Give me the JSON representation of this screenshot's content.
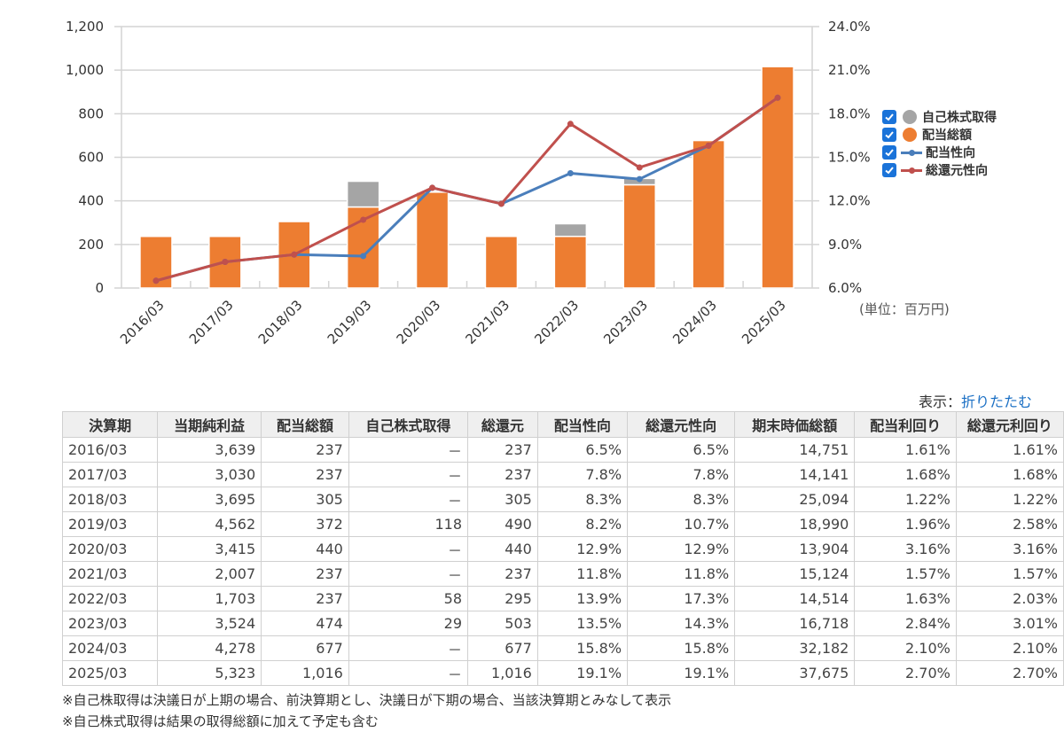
{
  "chart_data": {
    "type": "bar",
    "categories": [
      "2016/03",
      "2017/03",
      "2018/03",
      "2019/03",
      "2020/03",
      "2021/03",
      "2022/03",
      "2023/03",
      "2024/03",
      "2025/03"
    ],
    "series": [
      {
        "name": "配当総額",
        "kind": "stacked-bar",
        "axis": "left",
        "color": "#ed7d31",
        "values": [
          237,
          237,
          305,
          372,
          440,
          237,
          237,
          474,
          677,
          1016
        ]
      },
      {
        "name": "自己株式取得",
        "kind": "stacked-bar",
        "axis": "left",
        "color": "#a5a5a5",
        "values": [
          0,
          0,
          0,
          118,
          0,
          0,
          58,
          29,
          0,
          0
        ]
      },
      {
        "name": "配当性向",
        "kind": "line",
        "axis": "right",
        "color": "#4a7ebb",
        "values": [
          6.5,
          7.8,
          8.3,
          8.2,
          12.9,
          11.8,
          13.9,
          13.5,
          15.8,
          19.1
        ]
      },
      {
        "name": "総還元性向",
        "kind": "line",
        "axis": "right",
        "color": "#c0504d",
        "values": [
          6.5,
          7.8,
          8.3,
          10.7,
          12.9,
          11.8,
          17.3,
          14.3,
          15.8,
          19.1
        ]
      }
    ],
    "left_axis": {
      "ylim": [
        0,
        1200
      ],
      "ticks": [
        "0",
        "200",
        "400",
        "600",
        "800",
        "1,000",
        "1,200"
      ]
    },
    "right_axis": {
      "ylim": [
        6.0,
        24.0
      ],
      "ticks": [
        "6.0%",
        "9.0%",
        "12.0%",
        "15.0%",
        "18.0%",
        "21.0%",
        "24.0%"
      ]
    },
    "grid": true,
    "legend_position": "right",
    "unit_label": "(単位：百万円)"
  },
  "legend": [
    {
      "label": "自己株式取得",
      "checked": true,
      "swatch": "dot",
      "color": "#a5a5a5"
    },
    {
      "label": "配当総額",
      "checked": true,
      "swatch": "dot",
      "color": "#ed7d31"
    },
    {
      "label": "配当性向",
      "checked": true,
      "swatch": "line",
      "color": "#4a7ebb"
    },
    {
      "label": "総還元性向",
      "checked": true,
      "swatch": "line",
      "color": "#c0504d"
    }
  ],
  "display_toggle": {
    "label": "表示：",
    "link": "折りたたむ"
  },
  "table": {
    "headers": [
      "決算期",
      "当期純利益",
      "配当総額",
      "自己株式取得",
      "総還元",
      "配当性向",
      "総還元性向",
      "期末時価総額",
      "配当利回り",
      "総還元利回り"
    ],
    "rows": [
      [
        "2016/03",
        "3,639",
        "237",
        "－",
        "237",
        "6.5%",
        "6.5%",
        "14,751",
        "1.61%",
        "1.61%"
      ],
      [
        "2017/03",
        "3,030",
        "237",
        "－",
        "237",
        "7.8%",
        "7.8%",
        "14,141",
        "1.68%",
        "1.68%"
      ],
      [
        "2018/03",
        "3,695",
        "305",
        "－",
        "305",
        "8.3%",
        "8.3%",
        "25,094",
        "1.22%",
        "1.22%"
      ],
      [
        "2019/03",
        "4,562",
        "372",
        "118",
        "490",
        "8.2%",
        "10.7%",
        "18,990",
        "1.96%",
        "2.58%"
      ],
      [
        "2020/03",
        "3,415",
        "440",
        "－",
        "440",
        "12.9%",
        "12.9%",
        "13,904",
        "3.16%",
        "3.16%"
      ],
      [
        "2021/03",
        "2,007",
        "237",
        "－",
        "237",
        "11.8%",
        "11.8%",
        "15,124",
        "1.57%",
        "1.57%"
      ],
      [
        "2022/03",
        "1,703",
        "237",
        "58",
        "295",
        "13.9%",
        "17.3%",
        "14,514",
        "1.63%",
        "2.03%"
      ],
      [
        "2023/03",
        "3,524",
        "474",
        "29",
        "503",
        "13.5%",
        "14.3%",
        "16,718",
        "2.84%",
        "3.01%"
      ],
      [
        "2024/03",
        "4,278",
        "677",
        "－",
        "677",
        "15.8%",
        "15.8%",
        "32,182",
        "2.10%",
        "2.10%"
      ],
      [
        "2025/03",
        "5,323",
        "1,016",
        "－",
        "1,016",
        "19.1%",
        "19.1%",
        "37,675",
        "2.70%",
        "2.70%"
      ]
    ]
  },
  "notes": [
    "※自己株取得は決議日が上期の場合、前決算期とし、決議日が下期の場合、当該決算期とみなして表示",
    "※自己株式取得は結果の取得総額に加えて予定も含む"
  ]
}
